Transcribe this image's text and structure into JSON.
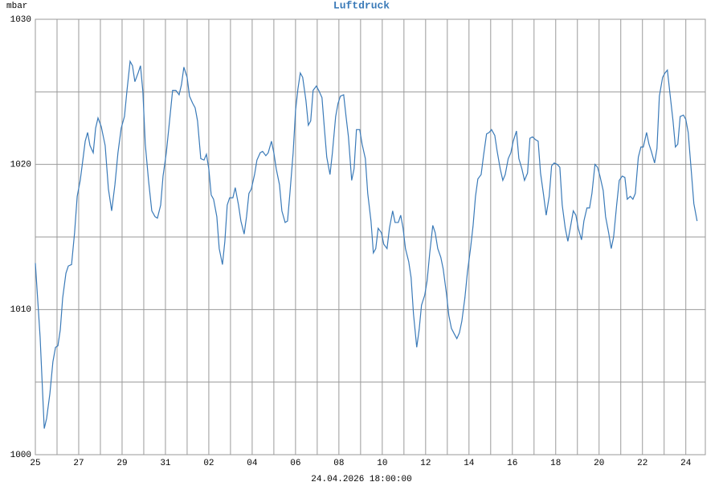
{
  "chart_data": {
    "type": "line",
    "title": "Luftdruck",
    "ylabel": "mbar",
    "xlabel": "24.04.2026 18:00:00",
    "ylim": [
      1000,
      1030
    ],
    "yticks": [
      1000,
      1010,
      1020,
      1030
    ],
    "xlim": [
      0,
      30.9
    ],
    "xticks": [
      {
        "value": 0,
        "label": "25"
      },
      {
        "value": 2,
        "label": "27"
      },
      {
        "value": 4,
        "label": "29"
      },
      {
        "value": 6,
        "label": "31"
      },
      {
        "value": 8,
        "label": "02"
      },
      {
        "value": 10,
        "label": "04"
      },
      {
        "value": 12,
        "label": "06"
      },
      {
        "value": 14,
        "label": "08"
      },
      {
        "value": 16,
        "label": "10"
      },
      {
        "value": 18,
        "label": "12"
      },
      {
        "value": 20,
        "label": "14"
      },
      {
        "value": 22,
        "label": "16"
      },
      {
        "value": 24,
        "label": "18"
      },
      {
        "value": 26,
        "label": "20"
      },
      {
        "value": 28,
        "label": "22"
      },
      {
        "value": 30,
        "label": "24"
      }
    ],
    "grid": true,
    "minor_grid": true,
    "color": "#3a7ab8",
    "x": [
      0,
      0.22,
      0.41,
      0.52,
      0.67,
      0.81,
      0.93,
      1.04,
      1.15,
      1.26,
      1.41,
      1.52,
      1.67,
      1.81,
      1.93,
      2.07,
      2.19,
      2.3,
      2.41,
      2.52,
      2.67,
      2.78,
      2.89,
      3.04,
      3.22,
      3.37,
      3.52,
      3.67,
      3.81,
      3.96,
      4.11,
      4.22,
      4.37,
      4.48,
      4.59,
      4.74,
      4.85,
      4.96,
      5.07,
      5.22,
      5.37,
      5.52,
      5.63,
      5.78,
      5.89,
      6.04,
      6.19,
      6.33,
      6.48,
      6.63,
      6.74,
      6.85,
      7,
      7.11,
      7.26,
      7.37,
      7.48,
      7.63,
      7.78,
      7.89,
      8,
      8.11,
      8.22,
      8.37,
      8.48,
      8.63,
      8.74,
      8.85,
      8.96,
      9.11,
      9.22,
      9.37,
      9.48,
      9.63,
      9.74,
      9.85,
      9.96,
      10.11,
      10.22,
      10.37,
      10.48,
      10.63,
      10.74,
      10.89,
      11,
      11.11,
      11.26,
      11.37,
      11.52,
      11.63,
      11.74,
      11.89,
      12,
      12.11,
      12.22,
      12.33,
      12.48,
      12.59,
      12.7,
      12.81,
      12.96,
      13.07,
      13.22,
      13.33,
      13.44,
      13.59,
      13.7,
      13.85,
      13.96,
      14.07,
      14.22,
      14.33,
      14.44,
      14.59,
      14.7,
      14.81,
      14.96,
      15.07,
      15.22,
      15.33,
      15.48,
      15.59,
      15.7,
      15.81,
      15.96,
      16.07,
      16.22,
      16.33,
      16.48,
      16.59,
      16.74,
      16.85,
      16.96,
      17.07,
      17.22,
      17.33,
      17.44,
      17.59,
      17.7,
      17.81,
      17.96,
      18.07,
      18.19,
      18.33,
      18.44,
      18.56,
      18.7,
      18.81,
      18.96,
      19.07,
      19.19,
      19.33,
      19.44,
      19.56,
      19.67,
      19.81,
      19.93,
      20.07,
      20.19,
      20.3,
      20.41,
      20.56,
      20.67,
      20.81,
      20.93,
      21.04,
      21.19,
      21.3,
      21.44,
      21.56,
      21.67,
      21.81,
      21.93,
      22.04,
      22.19,
      22.3,
      22.44,
      22.56,
      22.7,
      22.81,
      22.93,
      23.07,
      23.19,
      23.3,
      23.44,
      23.56,
      23.7,
      23.81,
      23.93,
      24.07,
      24.19,
      24.3,
      24.44,
      24.56,
      24.67,
      24.81,
      24.93,
      25.04,
      25.19,
      25.3,
      25.44,
      25.56,
      25.67,
      25.81,
      25.93,
      26.04,
      26.19,
      26.3,
      26.44,
      26.56,
      26.67,
      26.81,
      26.93,
      27.07,
      27.19,
      27.3,
      27.44,
      27.56,
      27.67,
      27.81,
      27.93,
      28.04,
      28.19,
      28.3,
      28.41,
      28.56,
      28.67,
      28.78,
      28.93,
      29.04,
      29.15,
      29.26,
      29.41,
      29.52,
      29.63,
      29.74,
      29.89,
      30,
      30.11,
      30.26,
      30.37,
      30.52
    ],
    "values": [
      1013.2,
      1008.1,
      1001.8,
      1002.5,
      1004.2,
      1006.4,
      1007.4,
      1007.5,
      1008.6,
      1010.8,
      1012.5,
      1013.0,
      1013.1,
      1015.3,
      1017.8,
      1018.9,
      1020.3,
      1021.6,
      1022.2,
      1021.3,
      1020.8,
      1022.5,
      1023.2,
      1022.6,
      1021.3,
      1018.3,
      1016.8,
      1018.6,
      1020.8,
      1022.5,
      1023.3,
      1025.0,
      1027.1,
      1026.8,
      1025.7,
      1026.3,
      1026.8,
      1025.0,
      1021.4,
      1018.9,
      1016.8,
      1016.4,
      1016.3,
      1017.2,
      1019.2,
      1020.8,
      1023.0,
      1025.1,
      1025.1,
      1024.8,
      1025.5,
      1026.7,
      1026.0,
      1024.7,
      1024.2,
      1023.9,
      1023.0,
      1020.4,
      1020.3,
      1020.7,
      1019.7,
      1017.9,
      1017.6,
      1016.4,
      1014.2,
      1013.1,
      1014.7,
      1017.2,
      1017.7,
      1017.7,
      1018.4,
      1017.2,
      1016.1,
      1015.2,
      1016.4,
      1018.0,
      1018.3,
      1019.3,
      1020.3,
      1020.8,
      1020.9,
      1020.6,
      1020.8,
      1021.6,
      1020.8,
      1019.7,
      1018.6,
      1016.8,
      1016.0,
      1016.1,
      1018.0,
      1020.8,
      1023.7,
      1025.2,
      1026.3,
      1026.0,
      1024.4,
      1022.7,
      1023.0,
      1025.1,
      1025.4,
      1025.1,
      1024.6,
      1022.5,
      1020.5,
      1019.3,
      1020.8,
      1023.3,
      1024.2,
      1024.7,
      1024.8,
      1023.3,
      1021.9,
      1018.9,
      1019.7,
      1022.4,
      1022.4,
      1021.4,
      1020.4,
      1018.0,
      1016.1,
      1013.9,
      1014.2,
      1015.6,
      1015.3,
      1014.5,
      1014.2,
      1015.6,
      1016.8,
      1016.0,
      1016.0,
      1016.5,
      1015.6,
      1014.2,
      1013.3,
      1012.2,
      1009.7,
      1007.4,
      1008.6,
      1010.3,
      1011.0,
      1012.0,
      1013.9,
      1015.8,
      1015.3,
      1014.2,
      1013.6,
      1012.8,
      1011.1,
      1009.6,
      1008.7,
      1008.3,
      1008.0,
      1008.4,
      1009.2,
      1010.8,
      1012.6,
      1014.2,
      1015.8,
      1017.8,
      1019.0,
      1019.3,
      1020.6,
      1022.1,
      1022.2,
      1022.4,
      1022.0,
      1020.9,
      1019.7,
      1018.9,
      1019.3,
      1020.4,
      1020.8,
      1021.6,
      1022.3,
      1020.4,
      1019.7,
      1018.9,
      1019.4,
      1021.8,
      1021.9,
      1021.7,
      1021.6,
      1019.4,
      1017.9,
      1016.5,
      1017.8,
      1019.9,
      1020.1,
      1020.0,
      1019.8,
      1017.2,
      1015.6,
      1014.7,
      1015.6,
      1016.8,
      1016.5,
      1015.6,
      1014.8,
      1016.1,
      1017.0,
      1017.0,
      1018.0,
      1020.0,
      1019.8,
      1019.2,
      1018.2,
      1016.4,
      1015.3,
      1014.2,
      1015.0,
      1017.2,
      1018.9,
      1019.2,
      1019.1,
      1017.6,
      1017.8,
      1017.6,
      1018.0,
      1020.5,
      1021.2,
      1021.2,
      1022.2,
      1021.4,
      1020.9,
      1020.1,
      1021.1,
      1024.7,
      1026.0,
      1026.3,
      1026.5,
      1025.0,
      1023.0,
      1021.2,
      1021.4,
      1023.3,
      1023.4,
      1023.1,
      1022.2,
      1019.4,
      1017.3,
      1016.1
    ]
  }
}
